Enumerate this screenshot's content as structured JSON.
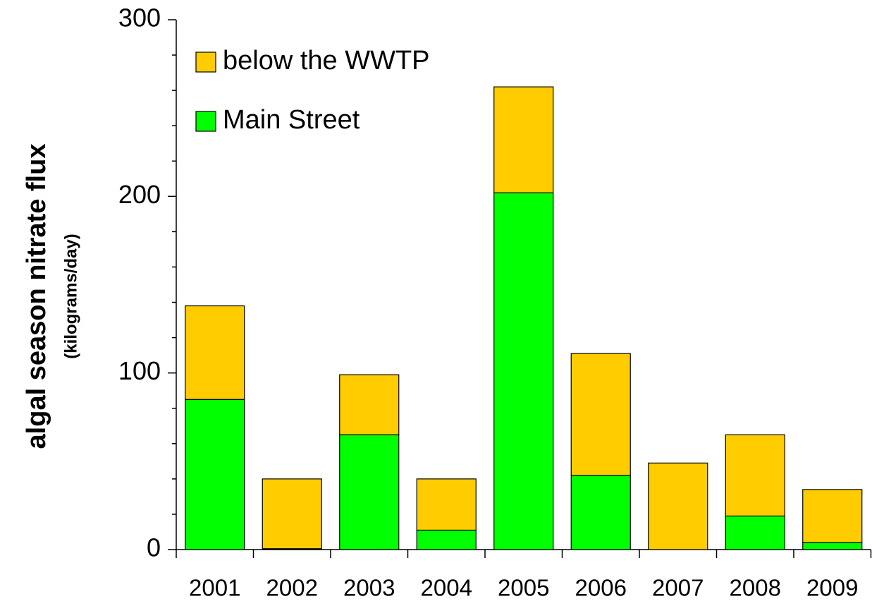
{
  "chart_data": {
    "type": "stacked_bar",
    "y_label": "algal season nitrate flux",
    "y_sublabel": "(kilograms/day)",
    "categories": [
      "2001",
      "2002",
      "2003",
      "2004",
      "2005",
      "2006",
      "2007",
      "2008",
      "2009"
    ],
    "series": [
      {
        "name": "Main Street",
        "color": "#00ff00",
        "values": [
          85,
          0.5,
          65,
          11,
          202,
          42,
          0,
          19,
          4
        ]
      },
      {
        "name": "below the WWTP",
        "color": "#ffcc00",
        "values": [
          53,
          39.5,
          34,
          29,
          60,
          69,
          49,
          46,
          30
        ]
      }
    ],
    "ylim": [
      0,
      300
    ],
    "yticks": [
      0,
      100,
      200,
      300
    ],
    "yminorticks": [
      20,
      40,
      60,
      80,
      120,
      140,
      160,
      180,
      220,
      240,
      260,
      280
    ],
    "legend": "upper left"
  }
}
